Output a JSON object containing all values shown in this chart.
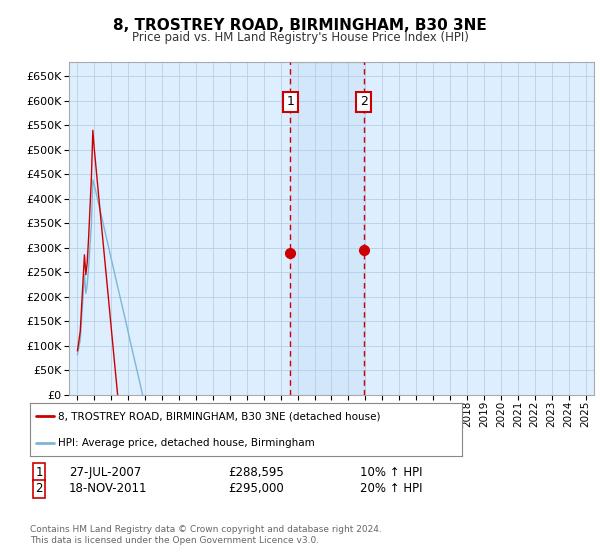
{
  "title": "8, TROSTREY ROAD, BIRMINGHAM, B30 3NE",
  "subtitle": "Price paid vs. HM Land Registry's House Price Index (HPI)",
  "red_color": "#cc0000",
  "blue_color": "#7eb6d4",
  "background_color": "#ddeeff",
  "grid_color": "#b8cfe8",
  "ylim_min": 0,
  "ylim_max": 680000,
  "yticks": [
    0,
    50000,
    100000,
    150000,
    200000,
    250000,
    300000,
    350000,
    400000,
    450000,
    500000,
    550000,
    600000,
    650000
  ],
  "xlim_min": 1994.5,
  "xlim_max": 2025.5,
  "sale1_year": 2007.57,
  "sale1_price": 288595,
  "sale2_year": 2011.9,
  "sale2_price": 295000,
  "sale1_date": "27-JUL-2007",
  "sale1_hpi_pct": "10%",
  "sale2_date": "18-NOV-2011",
  "sale2_hpi_pct": "20%",
  "legend1": "8, TROSTREY ROAD, BIRMINGHAM, B30 3NE (detached house)",
  "legend2": "HPI: Average price, detached house, Birmingham",
  "footer_text": "Contains HM Land Registry data © Crown copyright and database right 2024.\nThis data is licensed under the Open Government Licence v3.0."
}
